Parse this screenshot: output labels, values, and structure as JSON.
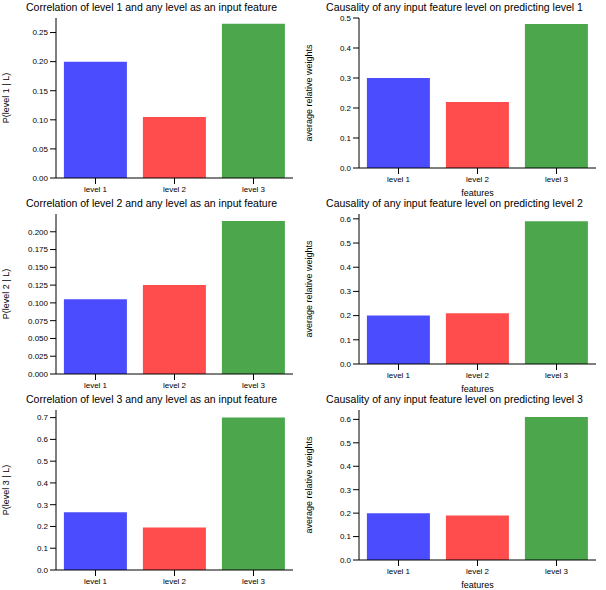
{
  "chart_data": [
    {
      "type": "bar",
      "title": "Correlation of level 1 and any level as an input feature",
      "y_label": "P(level 1 | L)",
      "categories": [
        "level 1",
        "level 2",
        "level 3"
      ],
      "values": [
        0.2,
        0.105,
        0.265
      ],
      "colors": [
        "#4c4cff",
        "#ff4c4c",
        "#4ca64c"
      ],
      "ylim": [
        0,
        0.275
      ],
      "yticks": [
        {
          "value": 0,
          "label": "0.00"
        },
        {
          "value": 0.05,
          "label": "0.05"
        },
        {
          "value": 0.1,
          "label": "0.10"
        },
        {
          "value": 0.15,
          "label": "0.15"
        },
        {
          "value": 0.2,
          "label": "0.20"
        },
        {
          "value": 0.25,
          "label": "0.25"
        }
      ]
    },
    {
      "type": "bar",
      "title": "Causality of any input feature level on predicting level 1",
      "y_label": "average relative weights",
      "x_label": "features",
      "categories": [
        "level 1",
        "level 2",
        "level 3"
      ],
      "values": [
        0.3,
        0.22,
        0.48
      ],
      "colors": [
        "#4c4cff",
        "#ff4c4c",
        "#4ca64c"
      ],
      "ylim": [
        0,
        0.5
      ],
      "yticks": [
        {
          "value": 0,
          "label": "0.0"
        },
        {
          "value": 0.1,
          "label": "0.1"
        },
        {
          "value": 0.2,
          "label": "0.2"
        },
        {
          "value": 0.3,
          "label": "0.3"
        },
        {
          "value": 0.4,
          "label": "0.4"
        },
        {
          "value": 0.5,
          "label": "0.5"
        }
      ]
    },
    {
      "type": "bar",
      "title": "Correlation of level 2 and any level as an input feature",
      "y_label": "P(level 2 | L)",
      "categories": [
        "level 1",
        "level 2",
        "level 3"
      ],
      "values": [
        0.105,
        0.125,
        0.215
      ],
      "colors": [
        "#4c4cff",
        "#ff4c4c",
        "#4ca64c"
      ],
      "ylim": [
        0,
        0.225
      ],
      "yticks": [
        {
          "value": 0,
          "label": "0.000"
        },
        {
          "value": 0.025,
          "label": "0.025"
        },
        {
          "value": 0.05,
          "label": "0.050"
        },
        {
          "value": 0.075,
          "label": "0.075"
        },
        {
          "value": 0.1,
          "label": "0.100"
        },
        {
          "value": 0.125,
          "label": "0.125"
        },
        {
          "value": 0.15,
          "label": "0.150"
        },
        {
          "value": 0.175,
          "label": "0.175"
        },
        {
          "value": 0.2,
          "label": "0.200"
        }
      ]
    },
    {
      "type": "bar",
      "title": "Causality of any input feature level on predicting level 2",
      "y_label": "average relative weights",
      "x_label": "features",
      "categories": [
        "level 1",
        "level 2",
        "level 3"
      ],
      "values": [
        0.2,
        0.21,
        0.59
      ],
      "colors": [
        "#4c4cff",
        "#ff4c4c",
        "#4ca64c"
      ],
      "ylim": [
        0,
        0.62
      ],
      "yticks": [
        {
          "value": 0,
          "label": "0.0"
        },
        {
          "value": 0.1,
          "label": "0.1"
        },
        {
          "value": 0.2,
          "label": "0.2"
        },
        {
          "value": 0.3,
          "label": "0.3"
        },
        {
          "value": 0.4,
          "label": "0.4"
        },
        {
          "value": 0.5,
          "label": "0.5"
        },
        {
          "value": 0.6,
          "label": "0.6"
        }
      ]
    },
    {
      "type": "bar",
      "title": "Correlation of level 3 and any level as an input feature",
      "y_label": "P(level 3 | L)",
      "categories": [
        "level 1",
        "level 2",
        "level 3"
      ],
      "values": [
        0.265,
        0.195,
        0.7
      ],
      "colors": [
        "#4c4cff",
        "#ff4c4c",
        "#4ca64c"
      ],
      "ylim": [
        0,
        0.735
      ],
      "yticks": [
        {
          "value": 0,
          "label": "0.0"
        },
        {
          "value": 0.1,
          "label": "0.1"
        },
        {
          "value": 0.2,
          "label": "0.2"
        },
        {
          "value": 0.3,
          "label": "0.3"
        },
        {
          "value": 0.4,
          "label": "0.4"
        },
        {
          "value": 0.5,
          "label": "0.5"
        },
        {
          "value": 0.6,
          "label": "0.6"
        },
        {
          "value": 0.7,
          "label": "0.7"
        }
      ]
    },
    {
      "type": "bar",
      "title": "Causality of any input feature level on predicting level 3",
      "y_label": "average relative weights",
      "x_label": "features",
      "categories": [
        "level 1",
        "level 2",
        "level 3"
      ],
      "values": [
        0.2,
        0.19,
        0.61
      ],
      "colors": [
        "#4c4cff",
        "#ff4c4c",
        "#4ca64c"
      ],
      "ylim": [
        0,
        0.64
      ],
      "yticks": [
        {
          "value": 0,
          "label": "0.0"
        },
        {
          "value": 0.1,
          "label": "0.1"
        },
        {
          "value": 0.2,
          "label": "0.2"
        },
        {
          "value": 0.3,
          "label": "0.3"
        },
        {
          "value": 0.4,
          "label": "0.4"
        },
        {
          "value": 0.5,
          "label": "0.5"
        },
        {
          "value": 0.6,
          "label": "0.6"
        }
      ]
    }
  ]
}
